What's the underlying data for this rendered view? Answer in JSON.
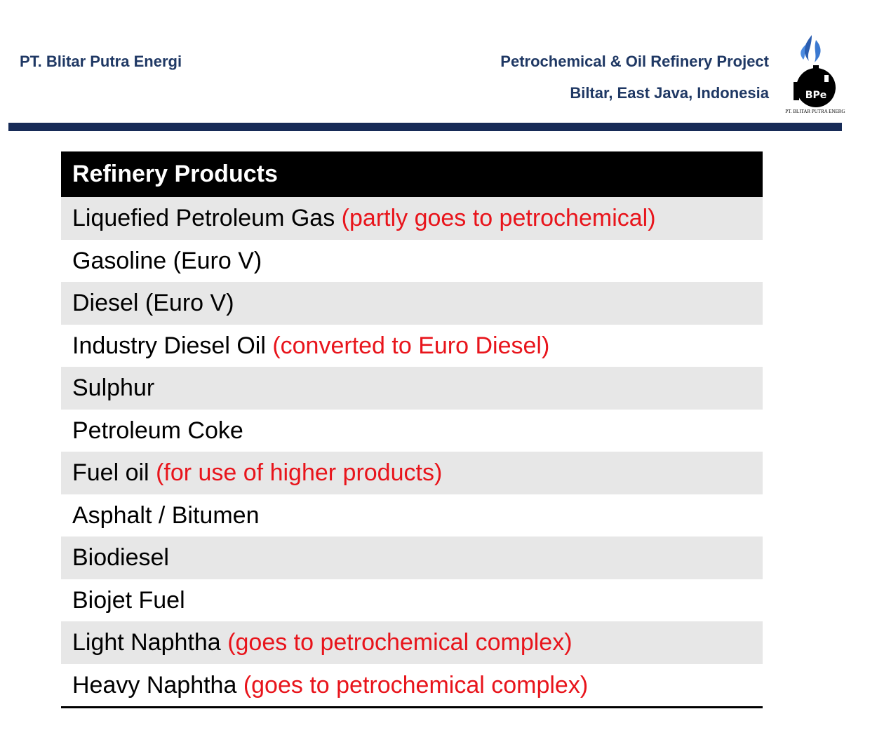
{
  "header": {
    "company": "PT. Blitar Putra Energi",
    "project": "Petrochemical & Oil Refinery Project",
    "location": "Biltar, East Java, Indonesia",
    "logo_mark": "BPe",
    "logo_ring": "PT. BLITAR PUTRA ENERGI"
  },
  "table": {
    "title": "Refinery Products",
    "rows": [
      {
        "name": "Liquefied Petroleum Gas",
        "note": "(partly goes to petrochemical)"
      },
      {
        "name": "Gasoline (Euro V)"
      },
      {
        "name": "Diesel (Euro V)"
      },
      {
        "name": "Industry Diesel Oil",
        "note": "(converted to Euro Diesel)"
      },
      {
        "name": "Sulphur"
      },
      {
        "name": "Petroleum Coke"
      },
      {
        "name": "Fuel oil",
        "note": "(for use of higher products)"
      },
      {
        "name": "Asphalt / Bitumen"
      },
      {
        "name": "Biodiesel"
      },
      {
        "name": "Biojet Fuel"
      },
      {
        "name": "Light Naphtha",
        "note": "(goes to petrochemical complex)"
      },
      {
        "name": "Heavy Naphtha",
        "note": "(goes to petrochemical complex)"
      }
    ]
  }
}
